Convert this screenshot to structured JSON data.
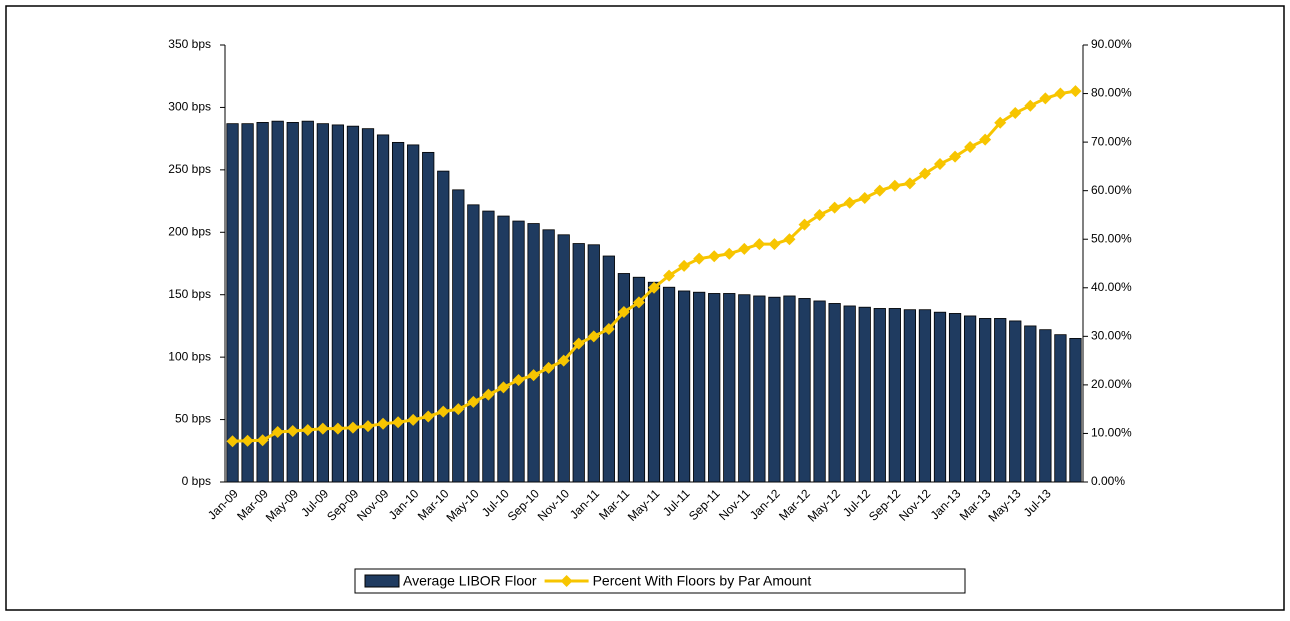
{
  "chart_data": {
    "type": "bar_line",
    "categories": [
      "Jan-09",
      null,
      "Mar-09",
      null,
      "May-09",
      null,
      "Jul-09",
      null,
      "Sep-09",
      null,
      "Nov-09",
      null,
      "Jan-10",
      null,
      "Mar-10",
      null,
      "May-10",
      null,
      "Jul-10",
      null,
      "Sep-10",
      null,
      "Nov-10",
      null,
      "Jan-11",
      null,
      "Mar-11",
      null,
      "May-11",
      null,
      "Jul-11",
      null,
      "Sep-11",
      null,
      "Nov-11",
      null,
      "Jan-12",
      null,
      "Mar-12",
      null,
      "May-12",
      null,
      "Jul-12",
      null,
      "Sep-12",
      null,
      "Nov-12",
      null,
      "Jan-13",
      null,
      "Mar-13",
      null,
      "May-13",
      null,
      "Jul-13",
      null,
      null
    ],
    "series": [
      {
        "name": "Average LIBOR Floor",
        "type": "bar",
        "color": "#1f3b60",
        "values": [
          287,
          287,
          288,
          289,
          288,
          289,
          287,
          286,
          285,
          283,
          278,
          272,
          270,
          264,
          249,
          234,
          222,
          217,
          213,
          209,
          207,
          202,
          198,
          191,
          190,
          181,
          167,
          164,
          160,
          156,
          153,
          152,
          151,
          151,
          150,
          149,
          148,
          149,
          147,
          145,
          143,
          141,
          140,
          139,
          139,
          138,
          138,
          136,
          135,
          133,
          131,
          131,
          129,
          125,
          122,
          118,
          115
        ]
      },
      {
        "name": "Percent With Floors by Par Amount",
        "type": "line",
        "axis": "y2",
        "color": "#f7c500",
        "values": [
          8.4,
          8.5,
          8.6,
          10.3,
          10.5,
          10.7,
          11,
          11,
          11.2,
          11.5,
          12,
          12.3,
          12.8,
          13.5,
          14.5,
          15,
          16.5,
          18,
          19.5,
          21,
          22,
          23.5,
          25,
          28.5,
          30,
          31.5,
          35,
          37,
          40,
          42.5,
          44.5,
          46,
          46.5,
          47,
          48,
          49,
          49,
          50,
          53,
          55,
          56.5,
          57.5,
          58.5,
          60,
          61,
          61.5,
          63.5,
          65.5,
          67,
          69,
          70.5,
          74,
          76,
          77.5,
          79,
          80,
          80.5
        ]
      }
    ],
    "ylim": [
      0,
      350
    ],
    "yticks": [
      {
        "value": 0,
        "label": "0 bps"
      },
      {
        "value": 50,
        "label": "50 bps"
      },
      {
        "value": 100,
        "label": "100 bps"
      },
      {
        "value": 150,
        "label": "150 bps"
      },
      {
        "value": 200,
        "label": "200 bps"
      },
      {
        "value": 250,
        "label": "250 bps"
      },
      {
        "value": 300,
        "label": "300 bps"
      },
      {
        "value": 350,
        "label": "350 bps"
      }
    ],
    "y2lim": [
      0,
      90
    ],
    "y2ticks": [
      {
        "value": 0,
        "label": "0.00%"
      },
      {
        "value": 10,
        "label": "10.00%"
      },
      {
        "value": 20,
        "label": "20.00%"
      },
      {
        "value": 30,
        "label": "30.00%"
      },
      {
        "value": 40,
        "label": "40.00%"
      },
      {
        "value": 50,
        "label": "50.00%"
      },
      {
        "value": 60,
        "label": "60.00%"
      },
      {
        "value": 70,
        "label": "70.00%"
      },
      {
        "value": 80,
        "label": "80.00%"
      },
      {
        "value": 90,
        "label": "90.00%"
      }
    ],
    "legend": "bottom"
  }
}
